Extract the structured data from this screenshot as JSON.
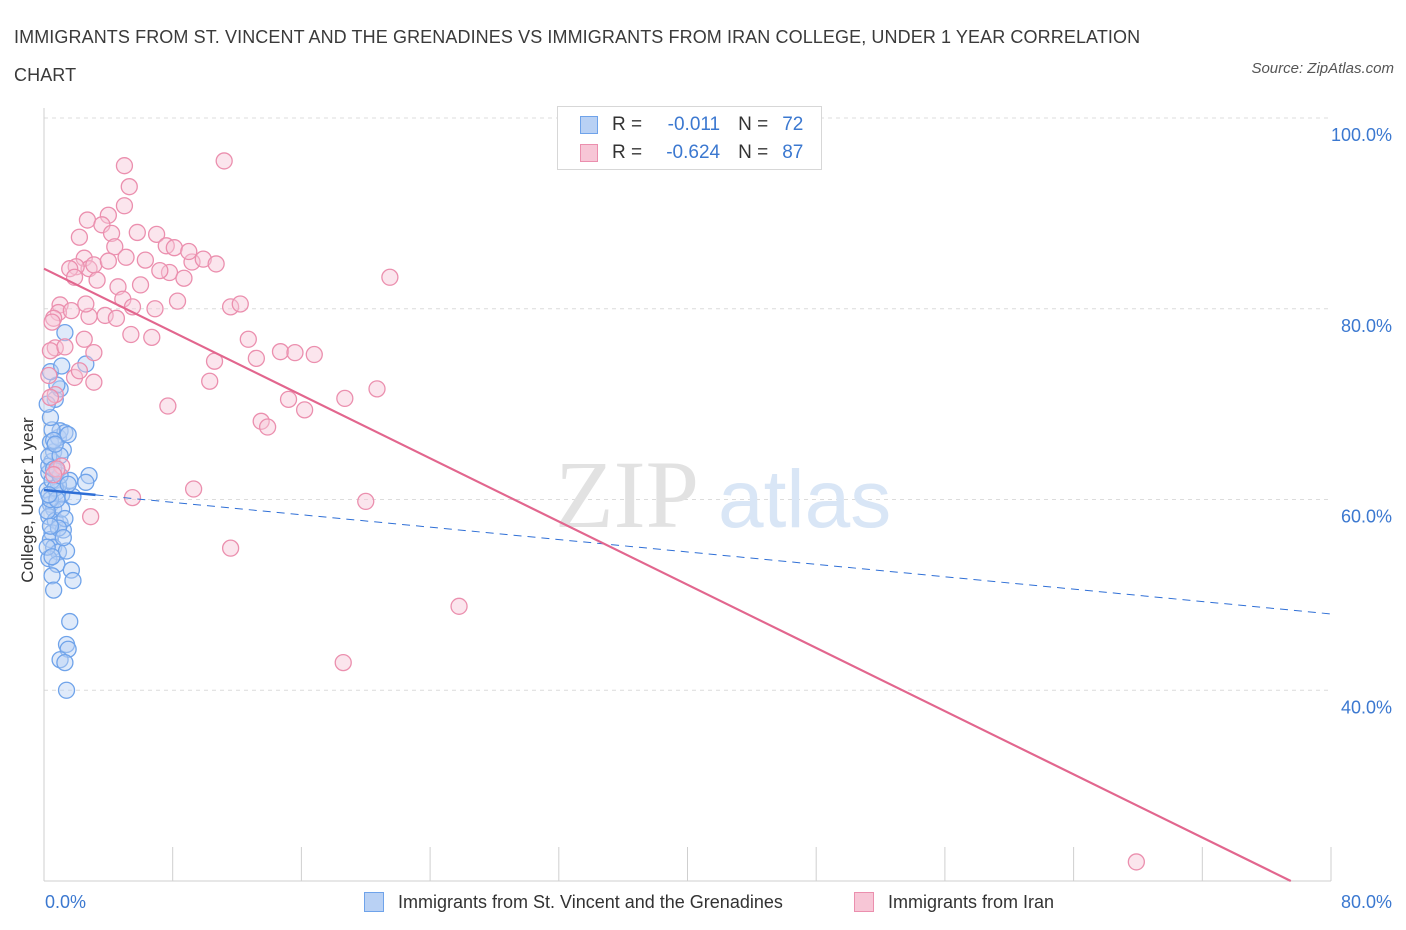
{
  "title": "IMMIGRANTS FROM ST. VINCENT AND THE GRENADINES VS IMMIGRANTS FROM IRAN COLLEGE, UNDER 1 YEAR CORRELATION CHART",
  "source": "Source: ZipAtlas.com",
  "watermark": {
    "zip": "ZIP",
    "atlas": "atlas"
  },
  "legend": {
    "rows": [
      {
        "r_label": "R =",
        "r_value": "-0.011",
        "n_label": "N =",
        "n_value": "72"
      },
      {
        "r_label": "R =",
        "r_value": "-0.624",
        "n_label": "N =",
        "n_value": "87"
      }
    ]
  },
  "chart_data": {
    "type": "scatter",
    "title": "IMMIGRANTS FROM ST. VINCENT AND THE GRENADINES VS IMMIGRANTS FROM IRAN COLLEGE, UNDER 1 YEAR CORRELATION CHART",
    "xlabel": "",
    "ylabel": "College, Under 1 year",
    "xlim": [
      0,
      80
    ],
    "ylim": [
      20,
      100
    ],
    "x_tick_labels": [
      "0.0%",
      "80.0%"
    ],
    "y_tick_labels": [
      "100.0%",
      "80.0%",
      "60.0%",
      "40.0%"
    ],
    "y_ticks": [
      100,
      80,
      60,
      40
    ],
    "grid": true,
    "legend_position": "bottom",
    "series": [
      {
        "name": "Immigrants from St. Vincent and the Grenadines",
        "color": "#6fa3ea",
        "fill": "#b9d1f4",
        "line_color": "#2f6fd6",
        "R": -0.011,
        "N": 72,
        "trend": {
          "x0": 0,
          "y0": 61.0,
          "x1": 80,
          "y1": 48.0,
          "solid_until_x": 3.2
        },
        "points": [
          [
            0.3,
            62.8
          ],
          [
            0.5,
            64.0
          ],
          [
            0.2,
            61.0
          ],
          [
            0.8,
            60.8
          ],
          [
            0.4,
            59.5
          ],
          [
            0.6,
            59.0
          ],
          [
            0.3,
            58.2
          ],
          [
            0.7,
            57.8
          ],
          [
            1.0,
            57.5
          ],
          [
            0.5,
            56.5
          ],
          [
            1.2,
            56.8
          ],
          [
            0.4,
            55.8
          ],
          [
            0.6,
            55.0
          ],
          [
            0.9,
            54.5
          ],
          [
            1.4,
            54.6
          ],
          [
            0.3,
            53.8
          ],
          [
            0.8,
            53.2
          ],
          [
            1.7,
            52.6
          ],
          [
            0.5,
            52.0
          ],
          [
            1.8,
            51.5
          ],
          [
            0.6,
            50.5
          ],
          [
            1.6,
            47.2
          ],
          [
            1.4,
            44.8
          ],
          [
            1.5,
            44.3
          ],
          [
            1.0,
            43.2
          ],
          [
            1.3,
            42.9
          ],
          [
            1.4,
            40.0
          ],
          [
            2.8,
            62.5
          ],
          [
            2.6,
            61.8
          ],
          [
            1.6,
            62.0
          ],
          [
            1.1,
            60.5
          ],
          [
            0.9,
            61.5
          ],
          [
            0.3,
            63.5
          ],
          [
            0.6,
            65.0
          ],
          [
            1.2,
            65.2
          ],
          [
            0.4,
            66.0
          ],
          [
            0.9,
            66.5
          ],
          [
            1.0,
            67.2
          ],
          [
            1.3,
            67.0
          ],
          [
            0.5,
            67.3
          ],
          [
            1.5,
            66.8
          ],
          [
            0.4,
            68.6
          ],
          [
            0.7,
            70.5
          ],
          [
            1.0,
            71.6
          ],
          [
            0.8,
            72.0
          ],
          [
            0.4,
            73.4
          ],
          [
            1.1,
            74.0
          ],
          [
            2.6,
            74.2
          ],
          [
            1.3,
            77.5
          ],
          [
            0.2,
            70.0
          ],
          [
            0.5,
            62.0
          ],
          [
            0.8,
            63.0
          ],
          [
            1.1,
            59.0
          ],
          [
            1.3,
            58.0
          ],
          [
            0.2,
            58.8
          ],
          [
            0.4,
            60.0
          ],
          [
            0.7,
            61.2
          ],
          [
            1.0,
            62.5
          ],
          [
            0.3,
            64.5
          ],
          [
            0.6,
            66.2
          ],
          [
            1.8,
            60.3
          ],
          [
            0.9,
            57.0
          ],
          [
            0.2,
            55.0
          ],
          [
            0.5,
            54.0
          ],
          [
            1.2,
            56.0
          ],
          [
            0.4,
            57.2
          ],
          [
            0.8,
            60.0
          ],
          [
            1.5,
            61.6
          ],
          [
            0.6,
            63.2
          ],
          [
            0.3,
            60.5
          ],
          [
            1.0,
            64.6
          ],
          [
            0.7,
            65.8
          ]
        ]
      },
      {
        "name": "Immigrants from Iran",
        "color": "#eb8fae",
        "fill": "#f7c6d6",
        "line_color": "#e2668e",
        "R": -0.624,
        "N": 87,
        "trend": {
          "x0": 0,
          "y0": 84.2,
          "x1": 77.5,
          "y1": 20.0
        },
        "points": [
          [
            5.0,
            95.0
          ],
          [
            11.2,
            95.5
          ],
          [
            5.3,
            92.8
          ],
          [
            5.0,
            90.8
          ],
          [
            4.0,
            89.8
          ],
          [
            2.7,
            89.3
          ],
          [
            3.6,
            88.8
          ],
          [
            4.2,
            87.9
          ],
          [
            2.2,
            87.5
          ],
          [
            7.0,
            87.8
          ],
          [
            4.4,
            86.5
          ],
          [
            7.6,
            86.6
          ],
          [
            8.1,
            86.4
          ],
          [
            2.5,
            85.3
          ],
          [
            5.1,
            85.4
          ],
          [
            6.3,
            85.1
          ],
          [
            9.2,
            84.9
          ],
          [
            9.9,
            85.2
          ],
          [
            10.7,
            84.7
          ],
          [
            2.8,
            84.2
          ],
          [
            2.0,
            84.4
          ],
          [
            3.1,
            84.6
          ],
          [
            1.6,
            84.2
          ],
          [
            1.9,
            83.3
          ],
          [
            7.8,
            83.8
          ],
          [
            8.7,
            83.2
          ],
          [
            21.5,
            83.3
          ],
          [
            4.6,
            82.3
          ],
          [
            4.9,
            81.0
          ],
          [
            8.3,
            80.8
          ],
          [
            11.6,
            80.2
          ],
          [
            12.2,
            80.5
          ],
          [
            6.9,
            80.0
          ],
          [
            5.5,
            80.2
          ],
          [
            1.0,
            80.4
          ],
          [
            0.9,
            79.6
          ],
          [
            1.7,
            79.8
          ],
          [
            0.6,
            79.0
          ],
          [
            2.8,
            79.2
          ],
          [
            3.8,
            79.3
          ],
          [
            0.5,
            78.6
          ],
          [
            5.4,
            77.3
          ],
          [
            6.7,
            77.0
          ],
          [
            2.5,
            76.8
          ],
          [
            12.7,
            76.8
          ],
          [
            0.7,
            75.9
          ],
          [
            0.4,
            75.6
          ],
          [
            3.1,
            75.4
          ],
          [
            14.7,
            75.5
          ],
          [
            15.6,
            75.4
          ],
          [
            16.8,
            75.2
          ],
          [
            13.2,
            74.8
          ],
          [
            10.6,
            74.5
          ],
          [
            1.9,
            72.8
          ],
          [
            3.1,
            72.3
          ],
          [
            10.3,
            72.4
          ],
          [
            20.7,
            71.6
          ],
          [
            0.7,
            71.0
          ],
          [
            0.4,
            70.7
          ],
          [
            18.7,
            70.6
          ],
          [
            15.2,
            70.5
          ],
          [
            7.7,
            69.8
          ],
          [
            16.2,
            69.4
          ],
          [
            13.5,
            68.2
          ],
          [
            13.9,
            67.6
          ],
          [
            1.1,
            63.5
          ],
          [
            0.8,
            63.2
          ],
          [
            0.6,
            62.6
          ],
          [
            9.3,
            61.1
          ],
          [
            5.5,
            60.2
          ],
          [
            20.0,
            59.8
          ],
          [
            2.9,
            58.2
          ],
          [
            11.6,
            54.9
          ],
          [
            25.8,
            48.8
          ],
          [
            18.6,
            42.9
          ],
          [
            67.9,
            22.0
          ],
          [
            2.6,
            80.5
          ],
          [
            6.0,
            82.5
          ],
          [
            4.0,
            85.0
          ],
          [
            3.3,
            83.0
          ],
          [
            7.2,
            84.0
          ],
          [
            5.8,
            88.0
          ],
          [
            9.0,
            86.0
          ],
          [
            1.3,
            76.0
          ],
          [
            2.2,
            73.5
          ],
          [
            0.3,
            73.0
          ],
          [
            4.5,
            79.0
          ]
        ]
      }
    ]
  },
  "bottom_legend": [
    "Immigrants from St. Vincent and the Grenadines",
    "Immigrants from Iran"
  ]
}
